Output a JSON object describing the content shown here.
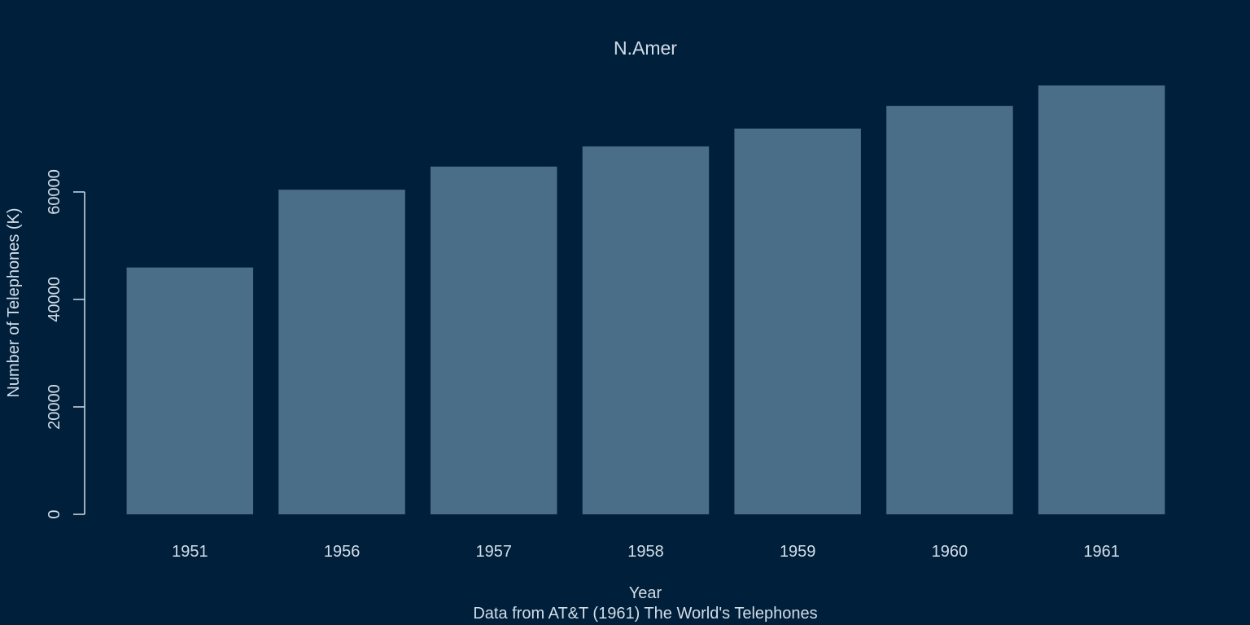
{
  "chart_data": {
    "type": "bar",
    "title": "N.Amer",
    "xlabel": "Year",
    "ylabel": "Number of Telephones (K)",
    "caption": "Data from AT&T (1961) The World's Telephones",
    "categories": [
      "1951",
      "1956",
      "1957",
      "1958",
      "1959",
      "1960",
      "1961"
    ],
    "values": [
      45939,
      60423,
      64721,
      68484,
      71799,
      76036,
      79831
    ],
    "yticks": [
      0,
      20000,
      40000,
      60000
    ],
    "ytick_labels": [
      "0",
      "20000",
      "40000",
      "60000"
    ],
    "ylim": [
      0,
      79831
    ],
    "grid": false,
    "colors": {
      "background": "#001f3a",
      "bar": "#4a6d88",
      "text": "#d3dde8",
      "axis": "#d3dde8"
    }
  }
}
